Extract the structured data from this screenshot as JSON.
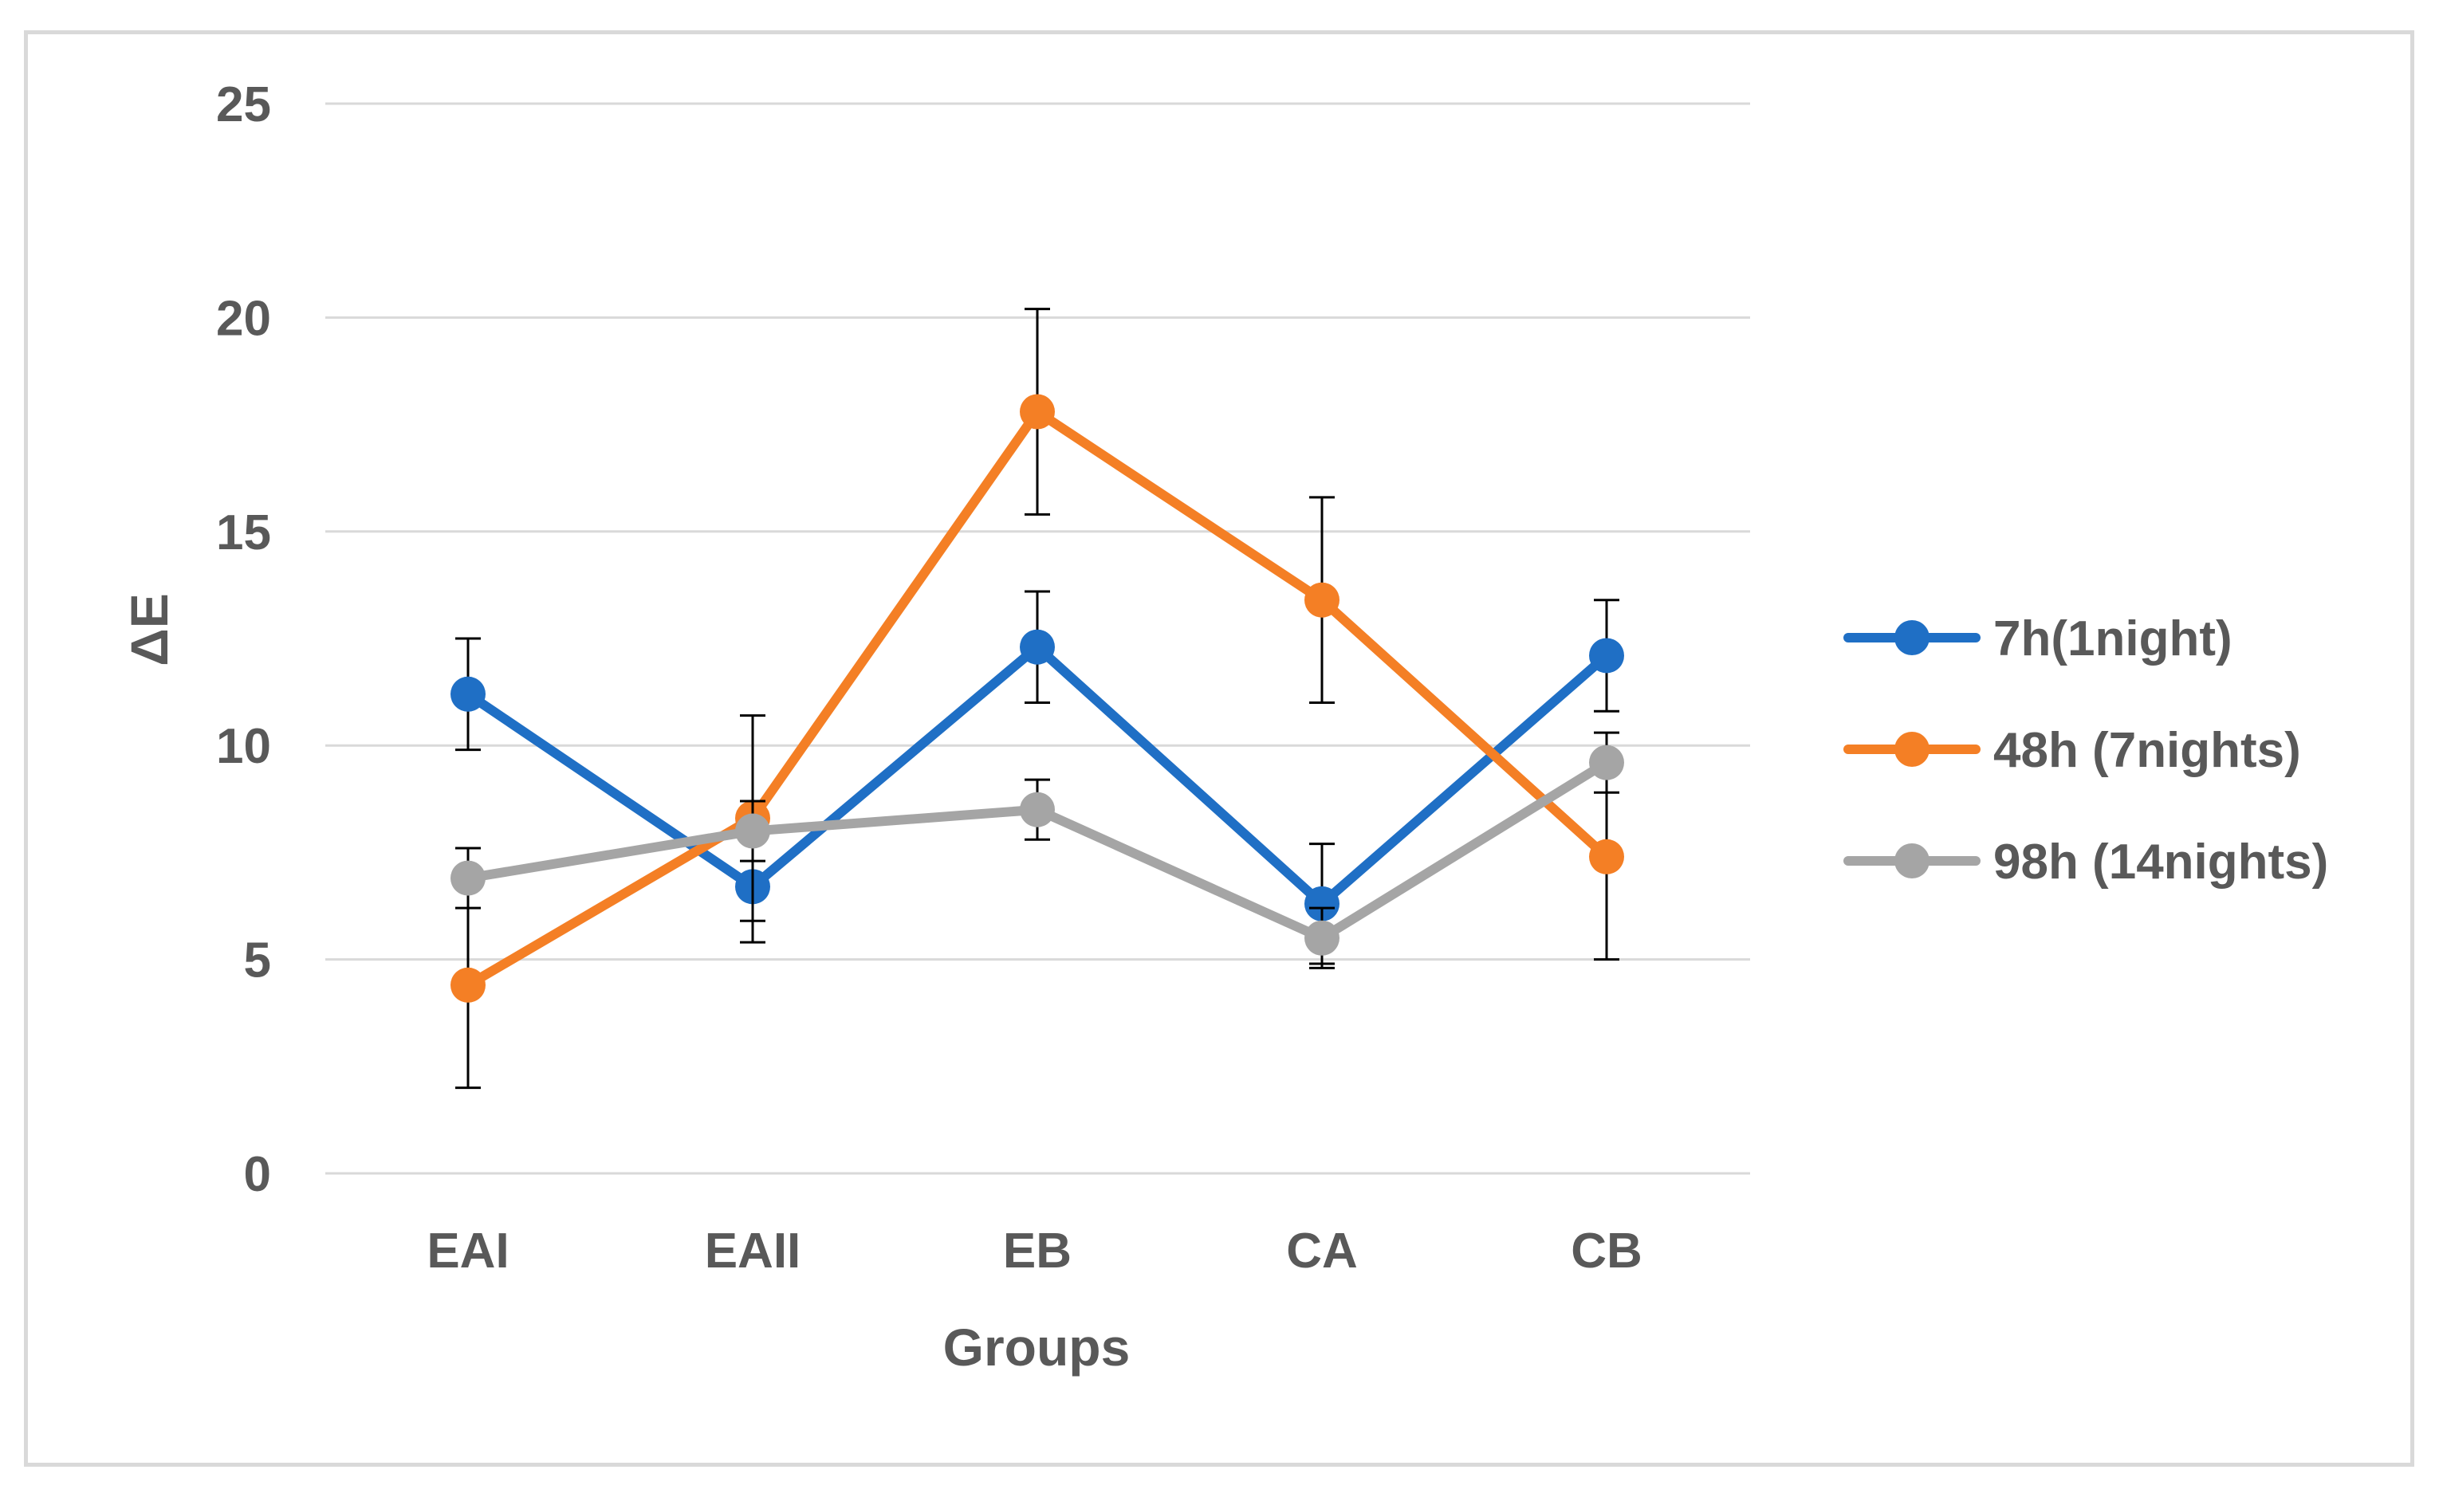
{
  "chart_data": {
    "type": "line",
    "title": "",
    "xlabel": "Groups",
    "ylabel": "ΔE",
    "categories": [
      "EAI",
      "EAII",
      "EB",
      "CA",
      "CB"
    ],
    "ylim": [
      0,
      25
    ],
    "yticks": [
      0,
      5,
      10,
      15,
      20,
      25
    ],
    "grid": true,
    "legend_position": "right",
    "series": [
      {
        "name": "7h(1night)",
        "color": "#1f6fc5",
        "values": [
          11.2,
          6.7,
          12.3,
          6.3,
          12.1
        ],
        "errors": [
          1.3,
          1.3,
          1.3,
          1.4,
          1.3
        ]
      },
      {
        "name": "48h (7nights)",
        "color": "#f47f25",
        "values": [
          4.4,
          8.3,
          17.8,
          13.4,
          7.4
        ],
        "errors": [
          2.4,
          2.4,
          2.4,
          2.4,
          2.4
        ]
      },
      {
        "name": "98h (14nights)",
        "color": "#a5a5a5",
        "values": [
          6.9,
          8.0,
          8.5,
          5.5,
          9.6
        ],
        "errors": [
          0.7,
          0.7,
          0.7,
          0.7,
          0.7
        ]
      }
    ]
  }
}
